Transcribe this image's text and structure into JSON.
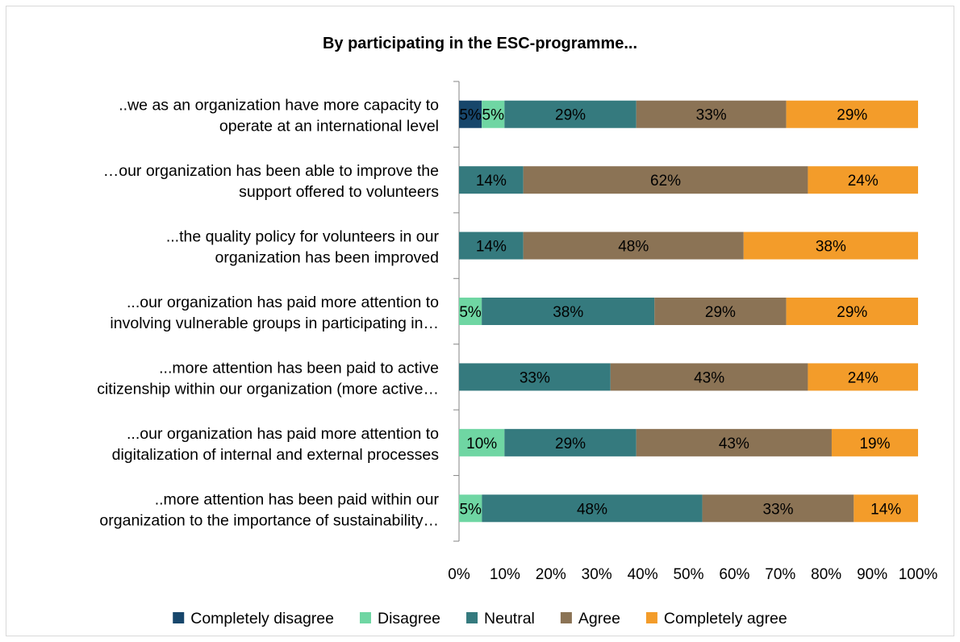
{
  "chart_data": {
    "type": "bar",
    "orientation": "horizontal",
    "stacked": "percent",
    "title": "By participating in the ESC-programme...",
    "categories": [
      [
        "..we as an organization have more capacity to",
        "operate at an international level"
      ],
      [
        "…our organization has been able to improve the",
        "support offered to volunteers"
      ],
      [
        "...the quality policy for volunteers in our",
        "organization has been improved"
      ],
      [
        "...our organization has paid more attention to",
        "involving vulnerable groups in participating in…"
      ],
      [
        "...more attention has been paid to active",
        "citizenship within our organization (more active…"
      ],
      [
        "...our organization has paid more attention to",
        "digitalization of internal and external processes"
      ],
      [
        "..more attention has been paid within our",
        "organization to the importance of sustainability…"
      ]
    ],
    "series": [
      {
        "name": "Completely disagree",
        "color": "#17466b",
        "values": [
          5,
          0,
          0,
          0,
          0,
          0,
          0
        ]
      },
      {
        "name": "Disagree",
        "color": "#6fd6a3",
        "values": [
          5,
          0,
          0,
          5,
          0,
          10,
          5
        ]
      },
      {
        "name": "Neutral",
        "color": "#357a7e",
        "values": [
          29,
          14,
          14,
          38,
          33,
          29,
          48
        ]
      },
      {
        "name": "Agree",
        "color": "#8b7355",
        "values": [
          33,
          62,
          48,
          29,
          43,
          43,
          33
        ]
      },
      {
        "name": "Completely agree",
        "color": "#f39c2a",
        "values": [
          29,
          24,
          38,
          29,
          24,
          19,
          14
        ]
      }
    ],
    "xlim": [
      0,
      100
    ],
    "xticks": [
      "0%",
      "10%",
      "20%",
      "30%",
      "40%",
      "50%",
      "60%",
      "70%",
      "80%",
      "90%",
      "100%"
    ],
    "legend_position": "bottom",
    "grid": false
  }
}
